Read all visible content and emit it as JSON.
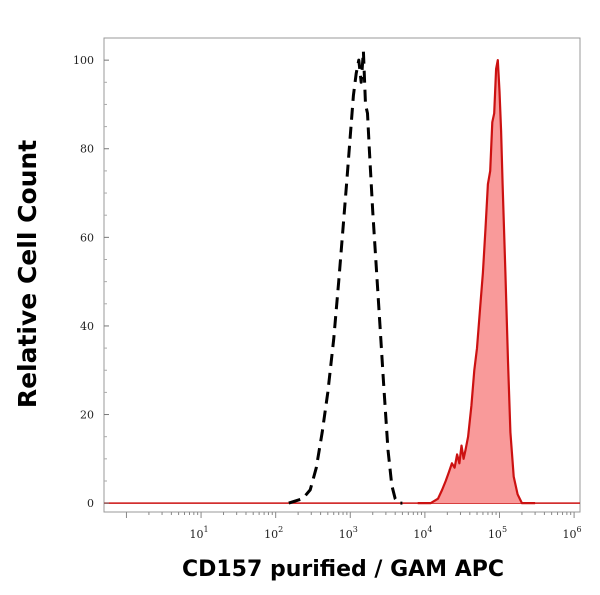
{
  "chart_data": {
    "type": "area",
    "title": "",
    "xlabel": "CD157 purified / GAM APC",
    "ylabel": "Relative Cell Count",
    "xscale": "log",
    "xlim": [
      0.5,
      1200000
    ],
    "ylim": [
      -2,
      105
    ],
    "grid": false,
    "legend": "none",
    "x_tick_values": [
      10,
      100,
      1000,
      10000,
      100000,
      1000000
    ],
    "x_tick_labels": [
      {
        "base": "10",
        "exp": "1"
      },
      {
        "base": "10",
        "exp": "2"
      },
      {
        "base": "10",
        "exp": "3"
      },
      {
        "base": "10",
        "exp": "4"
      },
      {
        "base": "10",
        "exp": "5"
      },
      {
        "base": "10",
        "exp": "6"
      }
    ],
    "y_ticks": [
      0,
      20,
      40,
      60,
      80,
      100
    ],
    "y_tick_labels": [
      "0",
      "20",
      "40",
      "60",
      "80",
      "100"
    ],
    "colors": {
      "control": "#000000",
      "stained_fill": "#f99a9a",
      "stained_line": "#cc1111",
      "frame": "#999999"
    },
    "series": [
      {
        "style": "dashed",
        "x": [
          150,
          230,
          290,
          350,
          420,
          500,
          600,
          700,
          800,
          900,
          1000,
          1100,
          1200,
          1300,
          1400,
          1500,
          1600,
          1700,
          1800,
          2000,
          2200,
          2500,
          2800,
          3200,
          3600,
          4000,
          4400,
          5000
        ],
        "y": [
          0,
          1,
          3,
          8,
          16,
          25,
          37,
          50,
          62,
          73,
          83,
          92,
          97,
          100,
          95,
          102,
          90,
          88,
          80,
          66,
          55,
          40,
          27,
          12,
          4,
          1,
          0,
          0
        ]
      },
      {
        "style": "filled",
        "x": [
          8000,
          12000,
          15000,
          17000,
          19000,
          21000,
          23000,
          25000,
          27000,
          29000,
          31000,
          33000,
          35000,
          38000,
          42000,
          46000,
          50000,
          55000,
          60000,
          65000,
          70000,
          75000,
          80000,
          85000,
          90000,
          95000,
          100000,
          105000,
          110000,
          120000,
          130000,
          140000,
          155000,
          175000,
          200000,
          250000,
          300000
        ],
        "y": [
          0,
          0,
          1,
          3,
          5,
          7,
          9,
          8,
          11,
          9,
          13,
          10,
          12,
          15,
          22,
          30,
          35,
          44,
          52,
          62,
          72,
          75,
          86,
          88,
          98,
          100,
          93,
          84,
          72,
          52,
          32,
          16,
          6,
          2,
          0,
          0,
          0
        ]
      }
    ]
  }
}
